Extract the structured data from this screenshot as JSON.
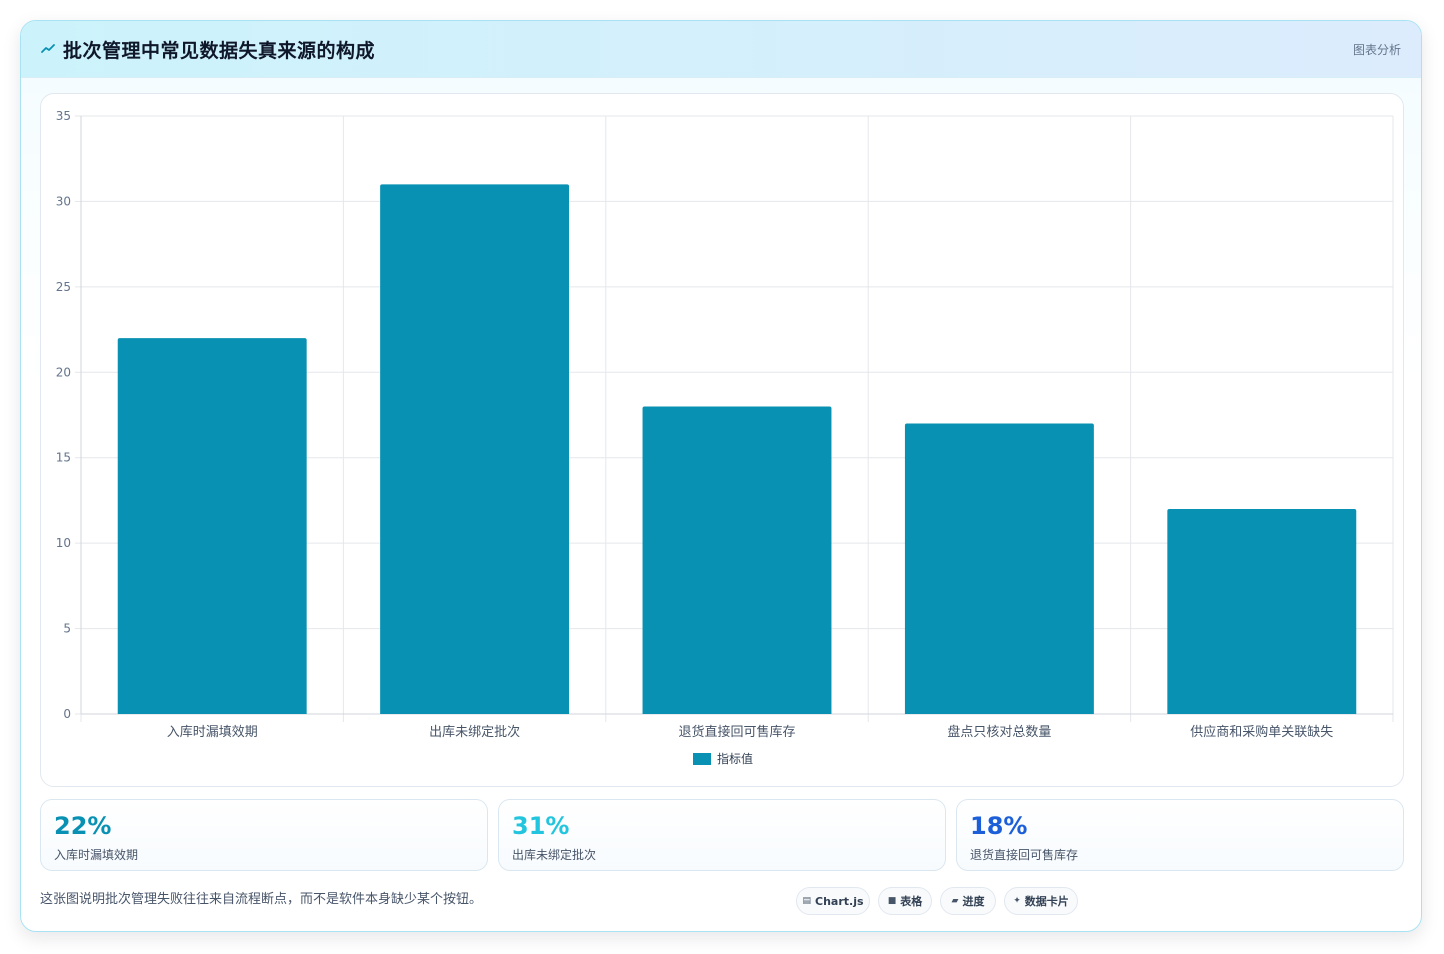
{
  "header": {
    "title": "批次管理中常见数据失真来源的构成",
    "badge": "图表分析",
    "icon": "trend-line-icon"
  },
  "chart_data": {
    "type": "bar",
    "categories": [
      "入库时漏填效期",
      "出库未绑定批次",
      "退货直接回可售库存",
      "盘点只核对总数量",
      "供应商和采购单关联缺失"
    ],
    "series": [
      {
        "name": "指标值",
        "values": [
          22,
          31,
          18,
          17,
          12
        ],
        "color": "#0891b2"
      }
    ],
    "ylim": [
      0,
      35
    ],
    "yticks": [
      0,
      5,
      10,
      15,
      20,
      25,
      30,
      35
    ],
    "grid": true,
    "legend": "bottom"
  },
  "stats": [
    {
      "value": "22%",
      "label": "入库时漏填效期",
      "color": "#0891b2"
    },
    {
      "value": "31%",
      "label": "出库未绑定批次",
      "color": "#22c5dd"
    },
    {
      "value": "18%",
      "label": "退货直接回可售库存",
      "color": "#1d5fd8"
    }
  ],
  "footnote": "这张图说明批次管理失败往往来自流程断点，而不是软件本身缺少某个按钮。",
  "chips": [
    {
      "label": "Chart.js",
      "icon": "chart-icon",
      "glyph": "▤"
    },
    {
      "label": "表格",
      "icon": "table-icon",
      "glyph": "■"
    },
    {
      "label": "进度",
      "icon": "progress-icon",
      "glyph": "▰"
    },
    {
      "label": "数据卡片",
      "icon": "sparkle-icon",
      "glyph": "✦"
    }
  ]
}
